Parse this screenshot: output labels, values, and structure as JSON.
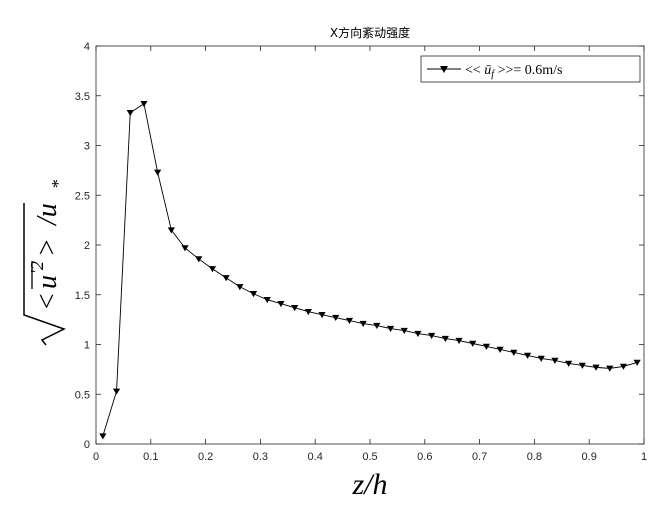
{
  "chart_data": {
    "type": "line",
    "title": "X方向紊动强度",
    "xlabel": "z/h",
    "ylabel": "√<u'²>/u*",
    "xlim": [
      0,
      1
    ],
    "ylim": [
      0,
      4
    ],
    "xticks": [
      "0",
      "0.1",
      "0.2",
      "0.3",
      "0.4",
      "0.5",
      "0.6",
      "0.7",
      "0.8",
      "0.9",
      "1"
    ],
    "yticks": [
      "0",
      "0.5",
      "1",
      "1.5",
      "2",
      "2.5",
      "3",
      "3.5",
      "4"
    ],
    "grid": false,
    "legend_position": "top-right",
    "series": [
      {
        "name": "<< ū_f >>= 0.6m/s",
        "marker": "triangle-down",
        "color": "#000000",
        "x": [
          0.0125,
          0.0375,
          0.0625,
          0.0875,
          0.1125,
          0.1375,
          0.1625,
          0.1875,
          0.2125,
          0.2375,
          0.2625,
          0.2875,
          0.3125,
          0.3375,
          0.3625,
          0.3875,
          0.4125,
          0.4375,
          0.4625,
          0.4875,
          0.5125,
          0.5375,
          0.5625,
          0.5875,
          0.6125,
          0.6375,
          0.6625,
          0.6875,
          0.7125,
          0.7375,
          0.7625,
          0.7875,
          0.8125,
          0.8375,
          0.8625,
          0.8875,
          0.9125,
          0.9375,
          0.9625,
          0.9875
        ],
        "y": [
          0.08,
          0.53,
          3.33,
          3.42,
          2.73,
          2.15,
          1.97,
          1.86,
          1.76,
          1.67,
          1.58,
          1.51,
          1.45,
          1.41,
          1.37,
          1.33,
          1.3,
          1.27,
          1.24,
          1.21,
          1.19,
          1.16,
          1.14,
          1.11,
          1.09,
          1.06,
          1.04,
          1.01,
          0.98,
          0.95,
          0.92,
          0.89,
          0.86,
          0.84,
          0.81,
          0.79,
          0.77,
          0.76,
          0.78,
          0.82
        ]
      }
    ]
  }
}
